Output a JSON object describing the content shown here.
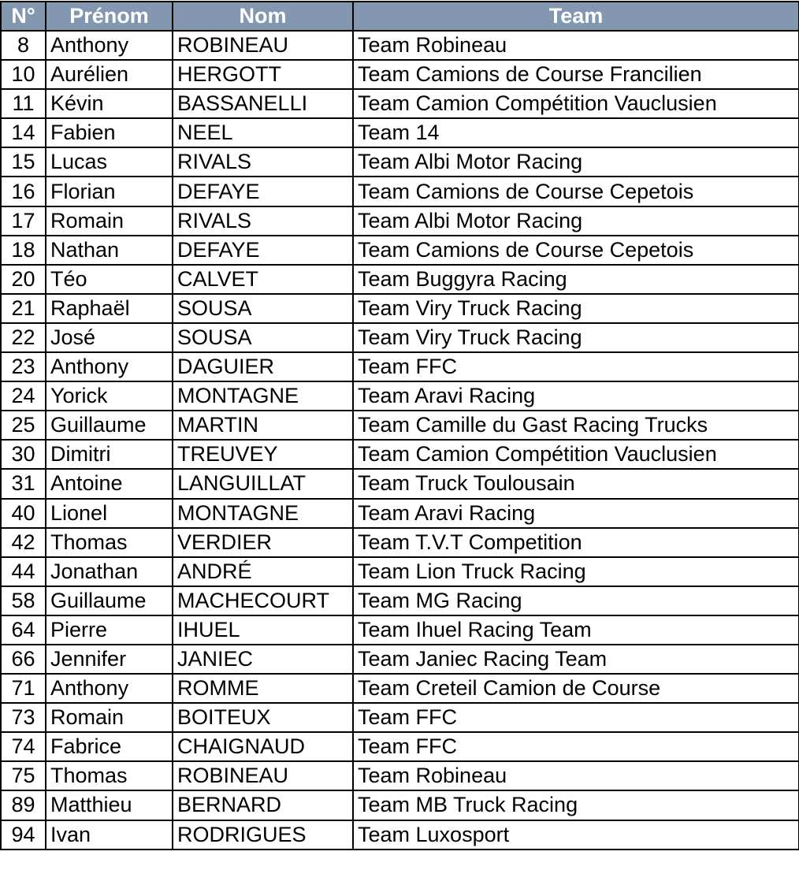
{
  "header_color": "#8497B0",
  "columns": [
    "N°",
    "Prénom",
    "Nom",
    "Team"
  ],
  "rows": [
    [
      "8",
      "Anthony",
      "ROBINEAU",
      "Team Robineau"
    ],
    [
      "10",
      "Aurélien",
      "HERGOTT",
      "Team Camions de Course Francilien"
    ],
    [
      "11",
      "Kévin",
      "BASSANELLI",
      "Team Camion Compétition Vauclusien"
    ],
    [
      "14",
      "Fabien",
      "NEEL",
      "Team 14"
    ],
    [
      "15",
      "Lucas",
      "RIVALS",
      "Team Albi Motor Racing"
    ],
    [
      "16",
      "Florian",
      "DEFAYE",
      "Team Camions de Course Cepetois"
    ],
    [
      "17",
      "Romain",
      "RIVALS",
      "Team Albi Motor Racing"
    ],
    [
      "18",
      "Nathan",
      "DEFAYE",
      "Team Camions de Course Cepetois"
    ],
    [
      "20",
      "Téo",
      "CALVET",
      "Team Buggyra Racing"
    ],
    [
      "21",
      "Raphaël",
      "SOUSA",
      "Team Viry Truck Racing"
    ],
    [
      "22",
      "José",
      "SOUSA",
      "Team Viry Truck Racing"
    ],
    [
      "23",
      "Anthony",
      "DAGUIER",
      "Team FFC"
    ],
    [
      "24",
      "Yorick",
      "MONTAGNE",
      "Team Aravi Racing"
    ],
    [
      "25",
      "Guillaume",
      "MARTIN",
      "Team Camille du Gast Racing Trucks"
    ],
    [
      "30",
      "Dimitri",
      "TREUVEY",
      "Team Camion Compétition Vauclusien"
    ],
    [
      "31",
      "Antoine",
      "LANGUILLAT",
      "Team Truck Toulousain"
    ],
    [
      "40",
      "Lionel",
      "MONTAGNE",
      "Team Aravi Racing"
    ],
    [
      "42",
      "Thomas",
      "VERDIER",
      "Team T.V.T Competition"
    ],
    [
      "44",
      "Jonathan",
      "ANDRÉ",
      "Team Lion Truck Racing"
    ],
    [
      "58",
      "Guillaume",
      "MACHECOURT",
      "Team MG Racing"
    ],
    [
      "64",
      "Pierre",
      "IHUEL",
      "Team Ihuel Racing Team"
    ],
    [
      "66",
      "Jennifer",
      "JANIEC",
      "Team Janiec Racing Team"
    ],
    [
      "71",
      "Anthony",
      "ROMME",
      "Team Creteil Camion de Course"
    ],
    [
      "73",
      "Romain",
      "BOITEUX",
      "Team FFC"
    ],
    [
      "74",
      "Fabrice",
      "CHAIGNAUD",
      "Team FFC"
    ],
    [
      "75",
      "Thomas",
      "ROBINEAU",
      "Team Robineau"
    ],
    [
      "89",
      "Matthieu",
      "BERNARD",
      "Team MB Truck Racing"
    ],
    [
      "94",
      "Ivan",
      "RODRIGUES",
      "Team Luxosport"
    ]
  ]
}
